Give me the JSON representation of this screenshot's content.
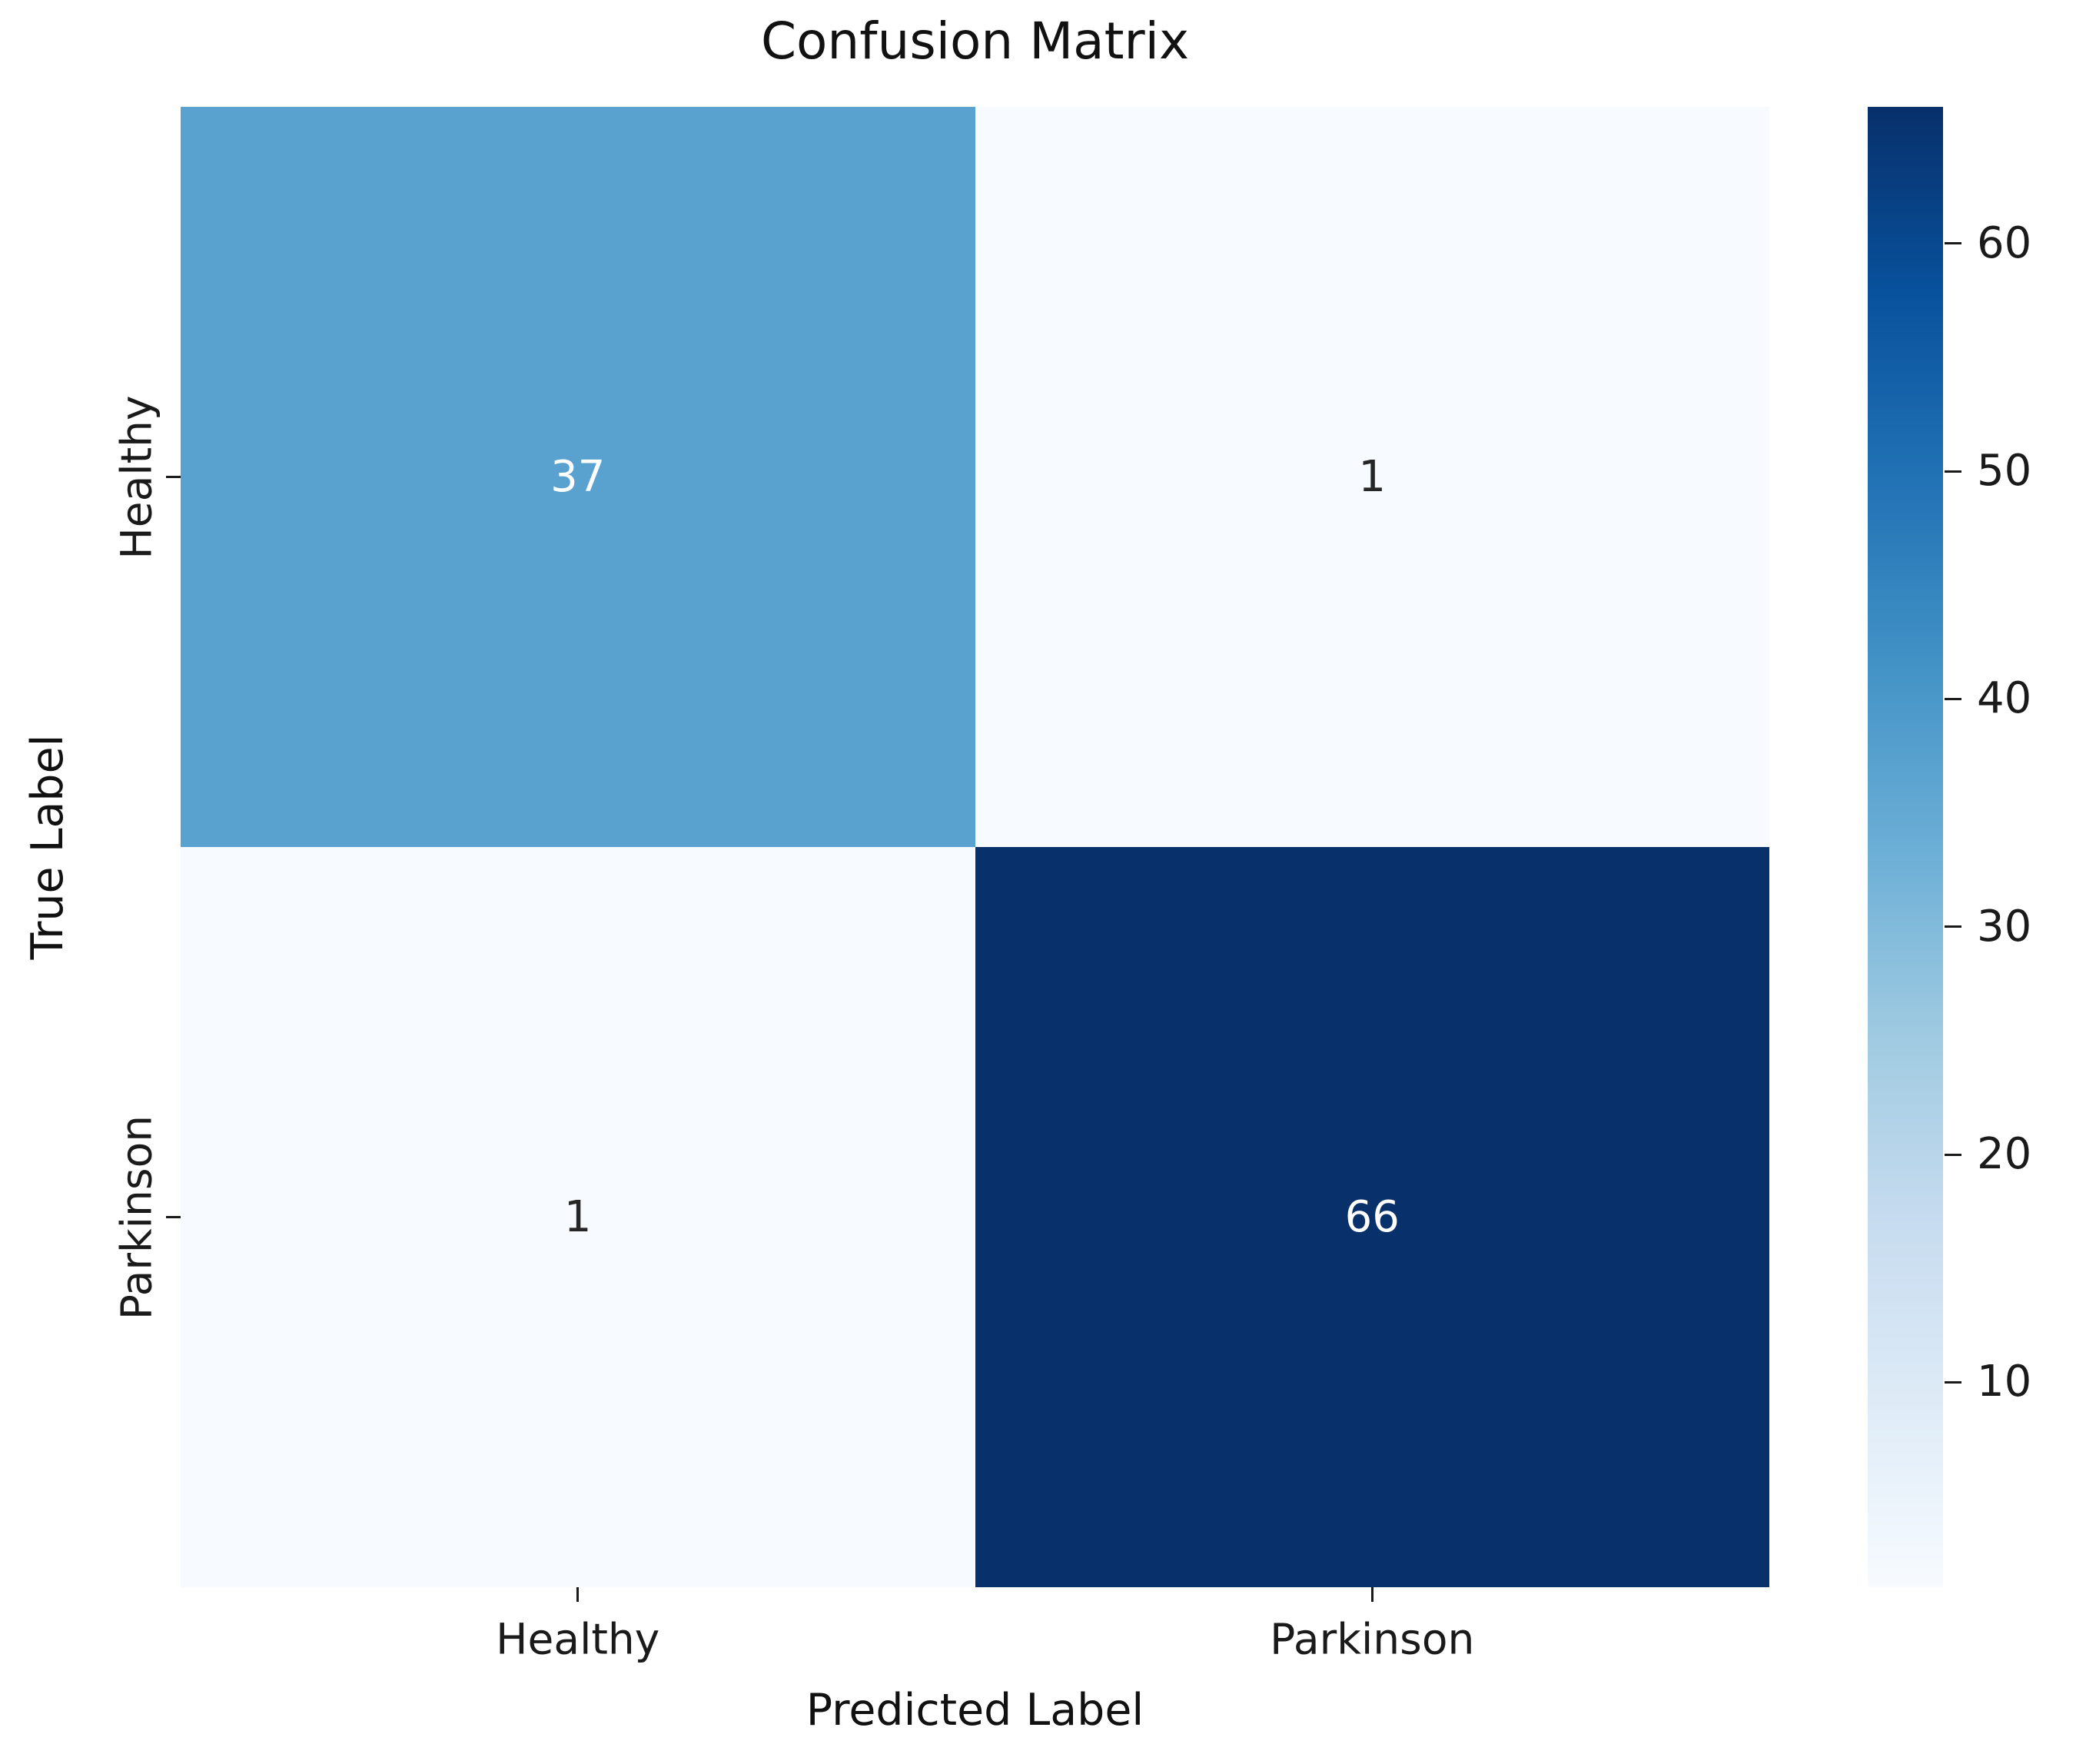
{
  "title": "Confusion Matrix",
  "chart_data": {
    "type": "heatmap",
    "title": "Confusion Matrix",
    "xlabel": "Predicted Label",
    "ylabel": "True Label",
    "x_categories": [
      "Healthy",
      "Parkinson"
    ],
    "y_categories": [
      "Healthy",
      "Parkinson"
    ],
    "matrix": [
      [
        37,
        1
      ],
      [
        1,
        66
      ]
    ],
    "colormap": "Blues",
    "vmin": 1,
    "vmax": 66,
    "grid": false,
    "legend_position": "right-colorbar",
    "colorbar_ticks": [
      60,
      50,
      40,
      30,
      20,
      10
    ],
    "colormap_stops_bottom_to_top": [
      "#f7fbff",
      "#deebf7",
      "#c6dbef",
      "#9ecae1",
      "#6baed6",
      "#4292c6",
      "#2171b5",
      "#08519c",
      "#08306b"
    ],
    "cells": [
      {
        "row": 0,
        "col": 0,
        "value": "37",
        "bg": "#59a2cf",
        "fg": "#ffffff"
      },
      {
        "row": 0,
        "col": 1,
        "value": "1",
        "bg": "#f7fbff",
        "fg": "#262626"
      },
      {
        "row": 1,
        "col": 0,
        "value": "1",
        "bg": "#f7fbff",
        "fg": "#262626"
      },
      {
        "row": 1,
        "col": 1,
        "value": "66",
        "bg": "#08306b",
        "fg": "#ffffff"
      }
    ]
  }
}
